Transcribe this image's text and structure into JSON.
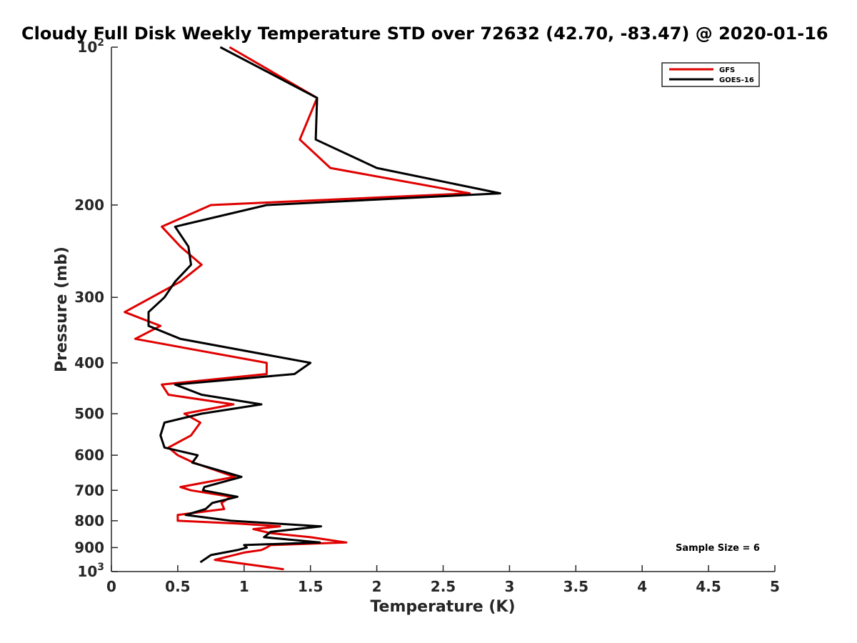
{
  "chart_data": {
    "type": "line",
    "title": "Cloudy Full Disk Weekly Temperature STD over 72632 (42.70, -83.47) @ 2020-01-16",
    "xlabel": "Temperature (K)",
    "ylabel": "Pressure (mb)",
    "xlim": [
      0,
      5
    ],
    "ylim": [
      100,
      1000
    ],
    "yscale": "log",
    "yaxis_reversed": true,
    "x_ticks": [
      "0",
      "0.5",
      "1",
      "1.5",
      "2",
      "2.5",
      "3",
      "3.5",
      "4",
      "4.5",
      "5"
    ],
    "x_tick_values": [
      0,
      0.5,
      1,
      1.5,
      2,
      2.5,
      3,
      3.5,
      4,
      4.5,
      5
    ],
    "y_ticks": [
      {
        "value": 100,
        "base": "10",
        "exp": "2"
      },
      {
        "value": 200,
        "label": "200"
      },
      {
        "value": 300,
        "label": "300"
      },
      {
        "value": 400,
        "label": "400"
      },
      {
        "value": 500,
        "label": "500"
      },
      {
        "value": 600,
        "label": "600"
      },
      {
        "value": 700,
        "label": "700"
      },
      {
        "value": 800,
        "label": "800"
      },
      {
        "value": 900,
        "label": "900"
      },
      {
        "value": 1000,
        "base": "10",
        "exp": "3"
      }
    ],
    "grid": false,
    "legend_position": "top-right",
    "annotation": "Sample Size = 6",
    "series": [
      {
        "name": "GFS",
        "color": "#e00000",
        "points": [
          [
            0.89,
            100
          ],
          [
            1.55,
            125
          ],
          [
            1.42,
            150
          ],
          [
            1.65,
            170
          ],
          [
            2.7,
            190
          ],
          [
            0.75,
            200
          ],
          [
            0.38,
            220
          ],
          [
            0.52,
            240
          ],
          [
            0.68,
            260
          ],
          [
            0.52,
            280
          ],
          [
            0.1,
            320
          ],
          [
            0.37,
            340
          ],
          [
            0.18,
            360
          ],
          [
            1.17,
            400
          ],
          [
            1.17,
            420
          ],
          [
            0.38,
            440
          ],
          [
            0.43,
            460
          ],
          [
            0.92,
            480
          ],
          [
            0.55,
            500
          ],
          [
            0.67,
            520
          ],
          [
            0.6,
            550
          ],
          [
            0.43,
            580
          ],
          [
            0.5,
            600
          ],
          [
            0.62,
            620
          ],
          [
            0.93,
            660
          ],
          [
            0.52,
            690
          ],
          [
            0.6,
            700
          ],
          [
            0.9,
            720
          ],
          [
            0.83,
            740
          ],
          [
            0.85,
            760
          ],
          [
            0.5,
            780
          ],
          [
            0.5,
            800
          ],
          [
            0.95,
            810
          ],
          [
            1.27,
            820
          ],
          [
            1.07,
            830
          ],
          [
            1.2,
            845
          ],
          [
            1.5,
            860
          ],
          [
            1.77,
            880
          ],
          [
            1.2,
            890
          ],
          [
            1.17,
            900
          ],
          [
            1.13,
            910
          ],
          [
            1.0,
            920
          ],
          [
            0.78,
            950
          ],
          [
            1.3,
            990
          ]
        ]
      },
      {
        "name": "GOES-16",
        "color": "#000000",
        "points": [
          [
            0.82,
            100
          ],
          [
            1.55,
            125
          ],
          [
            1.54,
            150
          ],
          [
            2.0,
            170
          ],
          [
            2.93,
            190
          ],
          [
            1.17,
            200
          ],
          [
            0.48,
            220
          ],
          [
            0.58,
            240
          ],
          [
            0.6,
            260
          ],
          [
            0.48,
            280
          ],
          [
            0.4,
            300
          ],
          [
            0.28,
            320
          ],
          [
            0.28,
            340
          ],
          [
            0.52,
            360
          ],
          [
            1.5,
            400
          ],
          [
            1.38,
            420
          ],
          [
            0.48,
            440
          ],
          [
            0.68,
            460
          ],
          [
            1.13,
            480
          ],
          [
            0.68,
            500
          ],
          [
            0.4,
            520
          ],
          [
            0.37,
            550
          ],
          [
            0.4,
            580
          ],
          [
            0.65,
            600
          ],
          [
            0.61,
            620
          ],
          [
            0.98,
            660
          ],
          [
            0.7,
            690
          ],
          [
            0.69,
            700
          ],
          [
            0.95,
            720
          ],
          [
            0.76,
            740
          ],
          [
            0.71,
            760
          ],
          [
            0.56,
            780
          ],
          [
            0.9,
            800
          ],
          [
            1.58,
            820
          ],
          [
            1.2,
            840
          ],
          [
            1.15,
            860
          ],
          [
            1.57,
            880
          ],
          [
            1.0,
            890
          ],
          [
            1.02,
            900
          ],
          [
            0.95,
            910
          ],
          [
            0.75,
            930
          ],
          [
            0.67,
            960
          ]
        ]
      }
    ]
  }
}
